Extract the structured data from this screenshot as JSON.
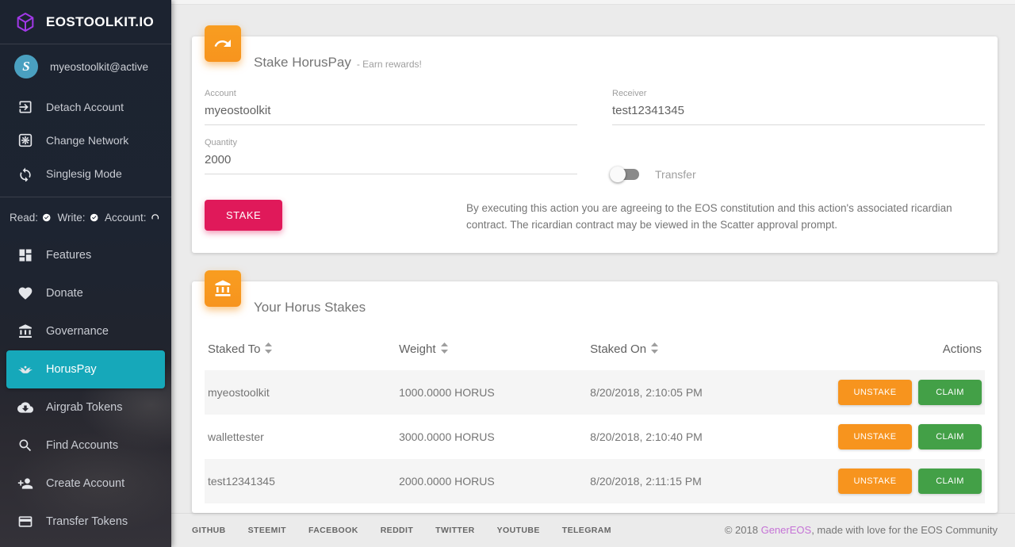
{
  "sidebar": {
    "logo": {
      "title": "EOSTOOLKIT.IO"
    },
    "account": {
      "label": "myeostoolkit@active",
      "avatar_letter": "S"
    },
    "account_items": [
      {
        "id": "detach-account",
        "icon": "exit-icon",
        "label": "Detach Account"
      },
      {
        "id": "change-network",
        "icon": "gear-icon",
        "label": "Change Network"
      },
      {
        "id": "singlesig-mode",
        "icon": "refresh-icon",
        "label": "Singlesig Mode"
      }
    ],
    "status": {
      "read_label": "Read:",
      "write_label": "Write:",
      "account_label": "Account:"
    },
    "nav_items": [
      {
        "id": "features",
        "icon": "grid-icon",
        "label": "Features",
        "active": false
      },
      {
        "id": "donate",
        "icon": "heart-icon",
        "label": "Donate",
        "active": false
      },
      {
        "id": "governance",
        "icon": "bank-icon",
        "label": "Governance",
        "active": false
      },
      {
        "id": "horuspay",
        "icon": "wings-icon",
        "label": "HorusPay",
        "active": true
      },
      {
        "id": "airgrab-tokens",
        "icon": "cloud-download-icon",
        "label": "Airgrab Tokens",
        "active": false
      },
      {
        "id": "find-accounts",
        "icon": "search-icon",
        "label": "Find Accounts",
        "active": false
      },
      {
        "id": "create-account",
        "icon": "person-add-icon",
        "label": "Create Account",
        "active": false
      },
      {
        "id": "transfer-tokens",
        "icon": "card-icon",
        "label": "Transfer Tokens",
        "active": false
      }
    ]
  },
  "stake_card": {
    "icon": "redo-arrow-icon",
    "title": "Stake HorusPay",
    "subtitle": "- Earn rewards!",
    "fields": {
      "account": {
        "label": "Account",
        "value": "myeostoolkit"
      },
      "receiver": {
        "label": "Receiver",
        "value": "test12341345"
      },
      "quantity": {
        "label": "Quantity",
        "value": "2000"
      }
    },
    "transfer_toggle": {
      "label": "Transfer",
      "state": "off"
    },
    "stake_button": "STAKE",
    "disclaimer": "By executing this action you are agreeing to the EOS constitution and this action's associated ricardian contract. The ricardian contract may be viewed in the Scatter approval prompt."
  },
  "stakes_card": {
    "icon": "bank-icon",
    "title": "Your Horus Stakes",
    "table": {
      "headers": [
        {
          "label": "Staked To",
          "sortable": true
        },
        {
          "label": "Weight",
          "sortable": true
        },
        {
          "label": "Staked On",
          "sortable": true
        },
        {
          "label": "Actions",
          "sortable": false
        }
      ],
      "rows": [
        {
          "staked_to": "myeostoolkit",
          "weight": "1000.0000 HORUS",
          "staked_on": "8/20/2018, 2:10:05 PM"
        },
        {
          "staked_to": "wallettester",
          "weight": "3000.0000 HORUS",
          "staked_on": "8/20/2018, 2:10:40 PM"
        },
        {
          "staked_to": "test12341345",
          "weight": "2000.0000 HORUS",
          "staked_on": "8/20/2018, 2:11:15 PM"
        }
      ],
      "actions": {
        "unstake": "UNSTAKE",
        "claim": "CLAIM"
      }
    }
  },
  "footer": {
    "links": [
      "GITHUB",
      "STEEMIT",
      "FACEBOOK",
      "REDDIT",
      "TWITTER",
      "YOUTUBE",
      "TELEGRAM"
    ],
    "copyright_prefix": "© 2018 ",
    "copyright_brand": "GenerEOS",
    "copyright_suffix": ", made with love for the EOS Community"
  },
  "colors": {
    "accent_teal": "#16a8ba",
    "accent_orange": "#f7941e",
    "accent_crimson": "#e0195a",
    "accent_green": "#43a047",
    "brand_purple": "#a238e8",
    "footer_brand": "#c573d6"
  }
}
